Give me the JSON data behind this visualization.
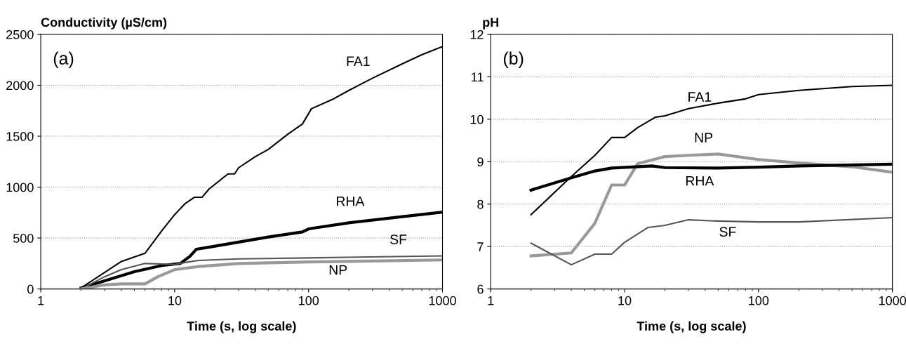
{
  "chart_data": [
    {
      "type": "line",
      "ylabel": "Conductivity (µS/cm)",
      "xlabel": "Time (s, log scale)",
      "annotations": [
        "(a)"
      ],
      "log": "x",
      "xlim": [
        1,
        1000
      ],
      "xticks": [
        1,
        10,
        100,
        1000
      ],
      "ylim": [
        0,
        2500
      ],
      "yticks": [
        0,
        500,
        1000,
        1500,
        2000,
        2500
      ],
      "grid": "y",
      "legend": false,
      "series": [
        {
          "name": "FA1",
          "color": "#000000",
          "x": [
            2,
            4,
            6,
            8,
            10,
            12,
            14,
            16,
            18,
            25,
            28,
            30,
            40,
            50,
            70,
            90,
            105,
            150,
            200,
            300,
            500,
            700,
            1000
          ],
          "values": [
            10,
            270,
            350,
            570,
            730,
            840,
            900,
            900,
            980,
            1130,
            1130,
            1190,
            1300,
            1370,
            1520,
            1620,
            1770,
            1860,
            1950,
            2070,
            2210,
            2300,
            2380
          ]
        },
        {
          "name": "RHA",
          "color": "#000000",
          "x": [
            2,
            3,
            5,
            8,
            11,
            13,
            14.5,
            18,
            30,
            50,
            90,
            100,
            200,
            500,
            1000
          ],
          "values": [
            10,
            80,
            170,
            230,
            250,
            320,
            390,
            410,
            460,
            510,
            560,
            590,
            650,
            710,
            755
          ]
        },
        {
          "name": "SF",
          "color": "#555555",
          "x": [
            2,
            3,
            4,
            6,
            8,
            10,
            12,
            15,
            30,
            100,
            1000
          ],
          "values": [
            0,
            120,
            190,
            250,
            245,
            240,
            260,
            280,
            295,
            305,
            325
          ]
        },
        {
          "name": "NP",
          "color": "#999999",
          "x": [
            2,
            3,
            4,
            6,
            7.5,
            10,
            15,
            30,
            100,
            1000
          ],
          "values": [
            0,
            40,
            50,
            50,
            120,
            190,
            220,
            250,
            265,
            285
          ]
        }
      ]
    },
    {
      "type": "line",
      "ylabel": "pH",
      "xlabel": "Time (s, log scale)",
      "annotations": [
        "(b)"
      ],
      "log": "x",
      "xlim": [
        1,
        1000
      ],
      "xticks": [
        1,
        10,
        100,
        1000
      ],
      "ylim": [
        6,
        12
      ],
      "yticks": [
        6,
        7,
        8,
        9,
        10,
        11,
        12
      ],
      "grid": "y",
      "legend": false,
      "series": [
        {
          "name": "FA1",
          "color": "#000000",
          "x": [
            2,
            4,
            6,
            8,
            10,
            12.5,
            17,
            20,
            30,
            50,
            80,
            100,
            200,
            500,
            1000
          ],
          "values": [
            7.75,
            8.65,
            9.15,
            9.57,
            9.57,
            9.8,
            10.05,
            10.08,
            10.25,
            10.38,
            10.48,
            10.58,
            10.68,
            10.77,
            10.8
          ]
        },
        {
          "name": "NP",
          "color": "#999999",
          "x": [
            2,
            4,
            6,
            8,
            10,
            12.5,
            20,
            30,
            50,
            100,
            200,
            500,
            1000
          ],
          "values": [
            6.78,
            6.85,
            7.55,
            8.45,
            8.45,
            8.95,
            9.12,
            9.15,
            9.18,
            9.05,
            8.97,
            8.88,
            8.75
          ]
        },
        {
          "name": "RHA",
          "color": "#000000",
          "x": [
            2,
            4,
            6,
            8,
            16,
            20,
            50,
            100,
            200,
            1000
          ],
          "values": [
            8.33,
            8.62,
            8.78,
            8.85,
            8.9,
            8.86,
            8.85,
            8.87,
            8.9,
            8.94
          ]
        },
        {
          "name": "SF",
          "color": "#555555",
          "x": [
            2,
            4,
            6,
            8,
            10,
            15,
            20,
            30,
            50,
            100,
            200,
            1000
          ],
          "values": [
            7.08,
            6.57,
            6.82,
            6.82,
            7.1,
            7.45,
            7.5,
            7.63,
            7.6,
            7.58,
            7.58,
            7.68
          ]
        }
      ]
    }
  ]
}
